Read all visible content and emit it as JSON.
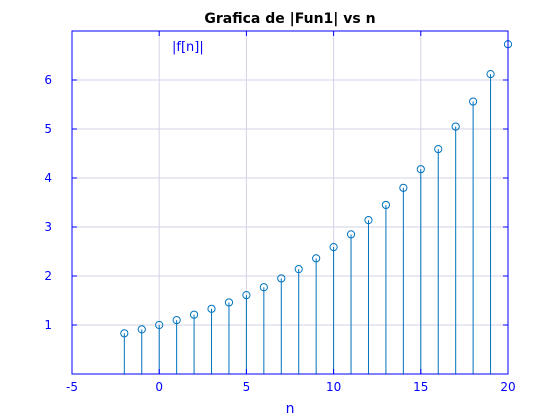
{
  "chart_data": {
    "type": "stem",
    "title": "Grafica de |Fun1| vs n",
    "xlabel": "n",
    "ylabel": "",
    "annotation": "|f[n]|",
    "xlim": [
      -5,
      20
    ],
    "ylim": [
      0,
      7
    ],
    "xticks": [
      -5,
      0,
      5,
      10,
      15,
      20
    ],
    "yticks": [
      1,
      2,
      3,
      4,
      5,
      6
    ],
    "grid": true,
    "colors": {
      "axes": "#0000ff",
      "stem": "#0072bd",
      "grid": "#d3d3e8"
    },
    "x": [
      -2,
      -1,
      0,
      1,
      2,
      3,
      4,
      5,
      6,
      7,
      8,
      9,
      10,
      11,
      12,
      13,
      14,
      15,
      16,
      17,
      18,
      19,
      20
    ],
    "y": [
      0.83,
      0.91,
      1.0,
      1.1,
      1.21,
      1.33,
      1.46,
      1.61,
      1.77,
      1.95,
      2.14,
      2.36,
      2.59,
      2.85,
      3.14,
      3.45,
      3.8,
      4.18,
      4.59,
      5.05,
      5.56,
      6.12,
      6.73
    ]
  }
}
